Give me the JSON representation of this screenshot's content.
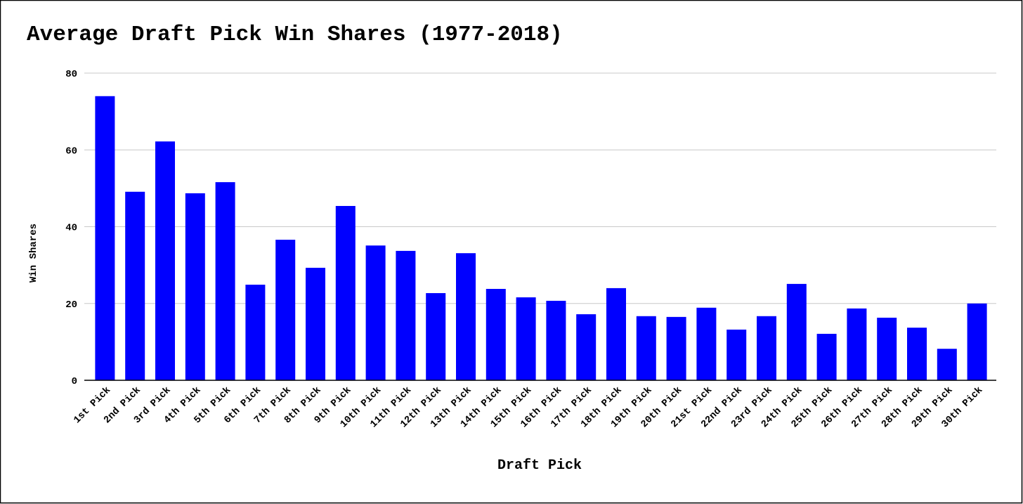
{
  "chart_data": {
    "type": "bar",
    "title": "Average Draft Pick Win Shares (1977-2018)",
    "x_label": "Draft Pick",
    "y_label": "Win Shares",
    "categories": [
      "1st Pick",
      "2nd Pick",
      "3rd Pick",
      "4th Pick",
      "5th Pick",
      "6th Pick",
      "7th Pick",
      "8th Pick",
      "9th Pick",
      "10th Pick",
      "11th Pick",
      "12th Pick",
      "13th Pick",
      "14th Pick",
      "15th Pick",
      "16th Pick",
      "17th Pick",
      "18th Pick",
      "19th Pick",
      "20th Pick",
      "21st Pick",
      "22nd Pick",
      "23rd Pick",
      "24th Pick",
      "25th Pick",
      "26th Pick",
      "27th Pick",
      "28th Pick",
      "29th Pick",
      "30th Pick"
    ],
    "values": [
      74.0,
      49.1,
      62.2,
      48.7,
      51.6,
      24.9,
      36.6,
      29.3,
      45.4,
      35.1,
      33.7,
      22.7,
      33.1,
      23.8,
      21.6,
      20.7,
      17.2,
      24.0,
      16.7,
      16.5,
      18.9,
      13.2,
      16.7,
      25.1,
      12.1,
      18.7,
      16.3,
      13.7,
      8.2,
      20.0
    ],
    "color": "#0000ff",
    "ylim": [
      0,
      80
    ],
    "yticks": [
      0,
      20,
      40,
      60,
      80
    ],
    "grid": true
  }
}
